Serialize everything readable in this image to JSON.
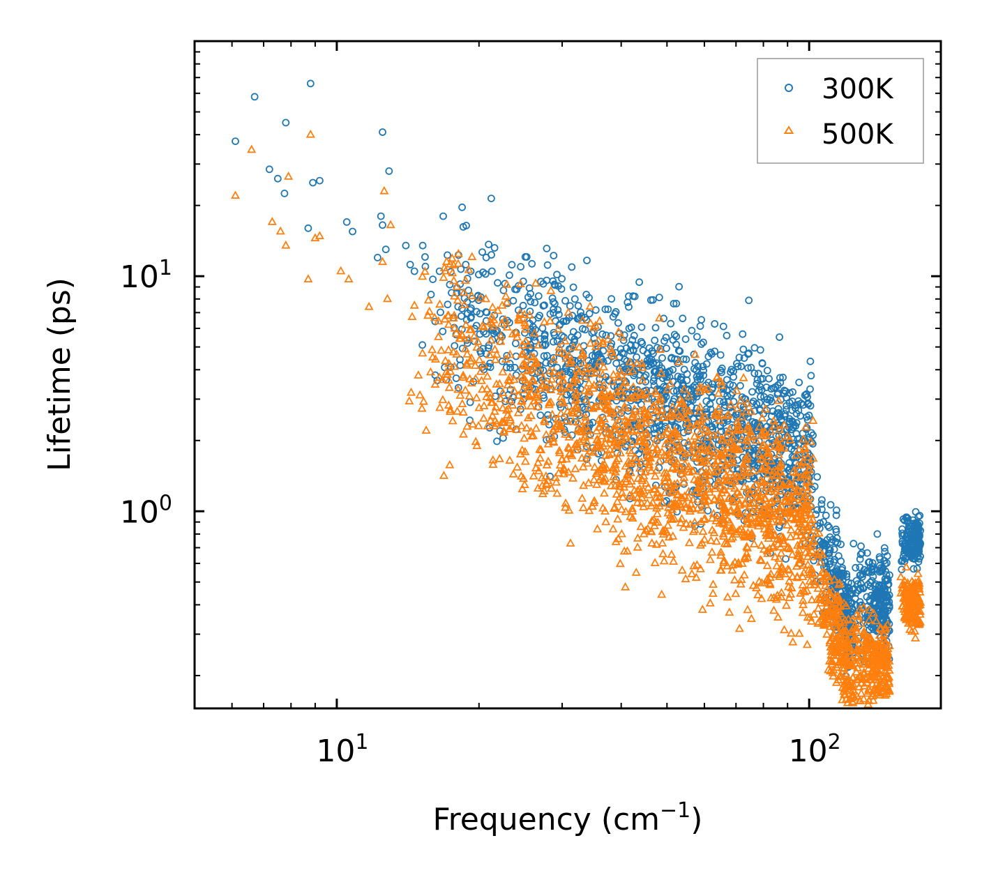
{
  "chart_data": {
    "type": "scatter",
    "title": "",
    "xlabel": "Frequency (cm",
    "xlabel_sup": "−1",
    "xlabel_end": ")",
    "ylabel": "Lifetime (ps)",
    "xscale": "log",
    "yscale": "log",
    "xlim": [
      5.0,
      190.0
    ],
    "ylim": [
      0.145,
      100.0
    ],
    "xticks": [
      {
        "value": 10,
        "base": "10",
        "exp": "1"
      },
      {
        "value": 100,
        "base": "10",
        "exp": "2"
      }
    ],
    "yticks": [
      {
        "value": 1,
        "base": "10",
        "exp": "0"
      },
      {
        "value": 10,
        "base": "10",
        "exp": "1"
      }
    ],
    "legend_position": "top-right",
    "series": [
      {
        "name": "300K",
        "marker": "circle",
        "color": "#1f77b4",
        "anchor_points": [
          [
            6.1,
            37.5
          ],
          [
            6.7,
            58
          ],
          [
            7.2,
            28.5
          ],
          [
            7.5,
            26
          ],
          [
            7.75,
            22.5
          ],
          [
            7.8,
            45
          ],
          [
            8.7,
            16
          ],
          [
            8.8,
            66
          ],
          [
            8.9,
            25
          ],
          [
            9.2,
            25.5
          ],
          [
            10.5,
            17
          ],
          [
            10.8,
            15.5
          ],
          [
            12.2,
            12
          ],
          [
            12.4,
            18
          ],
          [
            12.5,
            16.5
          ],
          [
            12.5,
            41
          ],
          [
            12.7,
            13
          ],
          [
            12.9,
            28
          ],
          [
            14.0,
            13.5
          ],
          [
            14.3,
            11.2
          ],
          [
            14.6,
            10.5
          ],
          [
            15.2,
            13.5
          ],
          [
            15.4,
            11
          ],
          [
            16.5,
            10.5
          ],
          [
            16.8,
            18
          ],
          [
            17.5,
            8.5
          ],
          [
            18.1,
            12.3
          ],
          [
            19.0,
            8.7
          ],
          [
            21.3,
            10.5
          ],
          [
            22.7,
            9.3
          ],
          [
            23.2,
            10.1
          ],
          [
            24.8,
            7.5
          ],
          [
            26.0,
            6.5
          ],
          [
            31.4,
            5.5
          ],
          [
            35.0,
            5.8
          ],
          [
            45.5,
            4.7
          ],
          [
            54.0,
            3.5
          ],
          [
            60.0,
            3.3
          ],
          [
            71.0,
            2.6
          ],
          [
            80.0,
            2.6
          ],
          [
            104.0,
            1.4
          ]
        ],
        "bulk": [
          {
            "x0": 15,
            "x1": 102,
            "y0": 8.0,
            "slope": -0.84,
            "spread": 0.42,
            "count": 1400
          },
          {
            "x0": 102,
            "x1": 124,
            "y0": 0.9,
            "slope": -5.5,
            "spread": 0.25,
            "count": 260
          },
          {
            "x0": 124,
            "x1": 148,
            "y0": 0.47,
            "slope": -1.2,
            "spread": 0.24,
            "count": 240
          },
          {
            "x0": 156,
            "x1": 172,
            "y0": 0.75,
            "slope": 0.0,
            "spread": 0.12,
            "count": 150
          }
        ]
      },
      {
        "name": "500K",
        "marker": "triangle",
        "color": "#ff7f0e",
        "anchor_points": [
          [
            6.1,
            22
          ],
          [
            6.6,
            34.5
          ],
          [
            7.3,
            17
          ],
          [
            7.6,
            15.5
          ],
          [
            7.8,
            13.5
          ],
          [
            7.9,
            26.5
          ],
          [
            8.7,
            9.7
          ],
          [
            8.8,
            40
          ],
          [
            9.0,
            14.5
          ],
          [
            9.2,
            14.8
          ],
          [
            10.2,
            10.5
          ],
          [
            10.6,
            9.7
          ],
          [
            11.7,
            7.4
          ],
          [
            12.5,
            11.5
          ],
          [
            12.6,
            23
          ],
          [
            12.8,
            8
          ],
          [
            13.0,
            16.5
          ],
          [
            14.6,
            7.5
          ],
          [
            17.0,
            10.5
          ],
          [
            15.8,
            3.9
          ],
          [
            16.5,
            3.7
          ],
          [
            18.5,
            3.7
          ],
          [
            19.3,
            3.5
          ],
          [
            35.5,
            2.8
          ],
          [
            45.0,
            2.5
          ],
          [
            68.0,
            1.95
          ]
        ],
        "bulk": [
          {
            "x0": 14,
            "x1": 102,
            "y0": 5.5,
            "slope": -0.95,
            "spread": 0.48,
            "count": 1600
          },
          {
            "x0": 102,
            "x1": 124,
            "y0": 0.55,
            "slope": -5.5,
            "spread": 0.25,
            "count": 260
          },
          {
            "x0": 124,
            "x1": 148,
            "y0": 0.25,
            "slope": -1.2,
            "spread": 0.22,
            "count": 240
          },
          {
            "x0": 156,
            "x1": 172,
            "y0": 0.42,
            "slope": -0.5,
            "spread": 0.12,
            "count": 150
          }
        ]
      }
    ]
  }
}
